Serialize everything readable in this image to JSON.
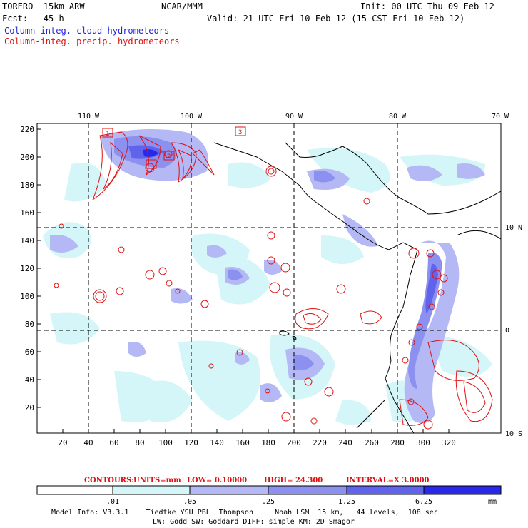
{
  "header": {
    "model": "TORERO  15km ARW",
    "center": "NCAR/MMM",
    "init": "Init: 00 UTC Thu 09 Feb 12",
    "fcst": "Fcst:   45 h",
    "valid": "Valid: 21 UTC Fri 10 Feb 12 (15 CST Fri 10 Feb 12)",
    "field_blue": "Column-integ. cloud hydrometeors",
    "field_red": "Column-integ. precip. hydrometeors"
  },
  "colors": {
    "blue_text": "#2222dd",
    "red_text": "#dd1111",
    "shade_1": "#ffffff",
    "shade_2": "#d4f6f8",
    "shade_3": "#b4b8f4",
    "shade_4": "#8c90ee",
    "shade_5": "#6064ec",
    "shade_6": "#2828ec",
    "contour": "#e01010"
  },
  "map": {
    "top_lon_labels": [
      "110 W",
      "100 W",
      "90 W",
      "80 W",
      "70 W"
    ],
    "right_lat_labels": [
      "10 N",
      "0",
      "10 S"
    ],
    "y_ticks": [
      "220",
      "200",
      "180",
      "160",
      "140",
      "120",
      "100",
      "80",
      "60",
      "40",
      "20"
    ],
    "x_ticks": [
      "20",
      "40",
      "60",
      "80",
      "100",
      "120",
      "140",
      "160",
      "180",
      "200",
      "220",
      "240",
      "260",
      "280",
      "300",
      "320"
    ],
    "box_labels": [
      "1",
      "2",
      "3"
    ]
  },
  "contour_info": {
    "label": "CONTOURS:",
    "units": "UNITS=mm",
    "low": "LOW= 0.10000",
    "high": "HIGH=  24.300",
    "interval": "INTERVAL=X  3.0000"
  },
  "legend": {
    "values": [
      ".01",
      ".05",
      ".25",
      "1.25",
      "6.25"
    ],
    "unit": "mm"
  },
  "footer": {
    "line1": "Model Info: V3.3.1    Tiedtke YSU PBL  Thompson     Noah LSM  15 km,   44 levels,  108 sec",
    "line2": "LW: Godd SW: Goddard DIFF: simple KM: 2D Smagor"
  }
}
